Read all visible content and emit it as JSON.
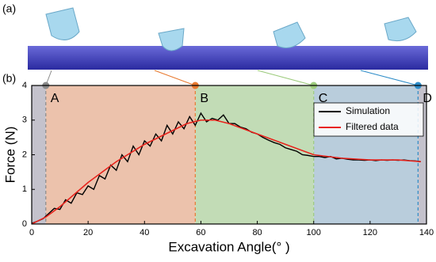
{
  "panel_a_label": "(a)",
  "chart_data": {
    "type": "line",
    "panel_label": "(b)",
    "x_label": "Excavation Angle(° )",
    "y_label": "Force (N)",
    "xlim": [
      0,
      140
    ],
    "xticks": [
      0,
      20,
      40,
      60,
      80,
      100,
      120,
      140
    ],
    "ylim": [
      0,
      4
    ],
    "yticks": [
      0,
      1,
      2,
      3,
      4
    ],
    "legend": "upper right",
    "markers": [
      {
        "label": "A",
        "x": 5,
        "color": "#8a8a8a"
      },
      {
        "label": "B",
        "x": 58,
        "color": "#e8782e"
      },
      {
        "label": "C",
        "x": 100,
        "color": "#9ccb7c"
      },
      {
        "label": "D",
        "x": 137,
        "color": "#2d8cc8"
      }
    ],
    "regions": [
      {
        "from": 0,
        "to": 5,
        "color": "#c4c2cc"
      },
      {
        "from": 5,
        "to": 58,
        "color": "#ecc2ac"
      },
      {
        "from": 58,
        "to": 100,
        "color": "#c2dcb6"
      },
      {
        "from": 100,
        "to": 137,
        "color": "#b9cddc"
      },
      {
        "from": 137,
        "to": 140,
        "color": "#c4c2cc"
      }
    ],
    "series": [
      {
        "name": "Simulation",
        "color": "#000000",
        "x": [
          0,
          2,
          4,
          6,
          8,
          10,
          12,
          14,
          16,
          18,
          20,
          22,
          24,
          26,
          28,
          30,
          32,
          34,
          36,
          38,
          40,
          42,
          44,
          46,
          48,
          50,
          52,
          54,
          56,
          58,
          60,
          62,
          64,
          66,
          68,
          70,
          72,
          74,
          76,
          78,
          80,
          82,
          84,
          86,
          88,
          90,
          92,
          94,
          96,
          98,
          100,
          102,
          104,
          106,
          108,
          110,
          112,
          114,
          116,
          118,
          120,
          122,
          124,
          126,
          128,
          130,
          132,
          134,
          136,
          138
        ],
        "values": [
          0.02,
          0.08,
          0.15,
          0.3,
          0.45,
          0.42,
          0.7,
          0.6,
          0.9,
          0.85,
          1.1,
          1.0,
          1.4,
          1.3,
          1.7,
          1.55,
          2.0,
          1.8,
          2.25,
          2.0,
          2.4,
          2.25,
          2.6,
          2.4,
          2.85,
          2.6,
          2.95,
          2.75,
          3.1,
          2.85,
          3.2,
          2.95,
          3.05,
          3.0,
          3.15,
          2.9,
          2.9,
          2.8,
          2.75,
          2.65,
          2.6,
          2.5,
          2.42,
          2.35,
          2.3,
          2.2,
          2.15,
          2.1,
          2.0,
          1.98,
          1.95,
          1.95,
          1.92,
          1.95,
          1.88,
          1.9,
          1.87,
          1.85,
          1.85,
          1.84,
          1.85,
          1.83,
          1.85,
          1.84,
          1.85,
          1.84,
          1.85,
          1.83,
          1.82,
          1.8
        ]
      },
      {
        "name": "Filtered data",
        "color": "#e8231c",
        "x": [
          0,
          5,
          10,
          20,
          30,
          40,
          50,
          55,
          60,
          65,
          70,
          80,
          90,
          100,
          110,
          120,
          130,
          138
        ],
        "values": [
          0,
          0.2,
          0.5,
          1.2,
          1.8,
          2.3,
          2.7,
          2.9,
          3.0,
          3.0,
          2.9,
          2.6,
          2.3,
          2.0,
          1.9,
          1.85,
          1.85,
          1.8
        ]
      }
    ]
  }
}
